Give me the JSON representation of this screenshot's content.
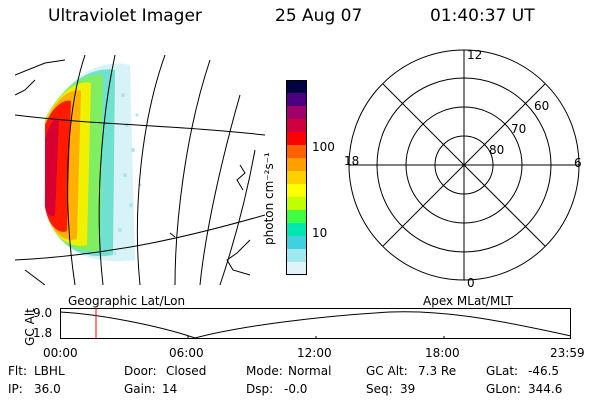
{
  "header": {
    "instrument": "Ultraviolet Imager",
    "date": "25 Aug 07",
    "time": "01:40:37 UT"
  },
  "colorbar": {
    "label": "photon cm⁻²s⁻¹",
    "ticks": [
      "100",
      "10"
    ],
    "colors": [
      "#000040",
      "#4b0082",
      "#a0006a",
      "#d00040",
      "#ff0000",
      "#ff6000",
      "#ffa000",
      "#ffd000",
      "#ffff00",
      "#c0ff00",
      "#40ff40",
      "#00e8b0",
      "#40d0e0",
      "#a0e8f0",
      "#e0f4f8"
    ]
  },
  "polar_plot": {
    "mlt_labels": {
      "top": "12",
      "bottom": "0",
      "left": "18",
      "right": "6"
    },
    "lat_labels": [
      "60",
      "70",
      "80"
    ]
  },
  "timeline": {
    "left_label": "Geographic Lat/Lon",
    "right_label": "Apex MLat/MLT",
    "y_title": "GC Alt",
    "y_ticks": [
      "9.0",
      "1.8"
    ],
    "x_ticks": [
      "00:00",
      "06:00",
      "12:00",
      "18:00",
      "23:59"
    ],
    "current_time_marker": "01:40",
    "marker_color": "#ff0000"
  },
  "status": {
    "flt_label": "Flt:",
    "flt_value": "LBHL",
    "ip_label": "IP:",
    "ip_value": "36.0",
    "door_label": "Door:",
    "door_value": "Closed",
    "gain_label": "Gain:",
    "gain_value": "14",
    "mode_label": "Mode:",
    "mode_value": "Normal",
    "dsp_label": "Dsp:",
    "dsp_value": "-0.0",
    "gcalt_label": "GC Alt:",
    "gcalt_value": "7.3 Re",
    "seq_label": "Seq:",
    "seq_value": "39",
    "glat_label": "GLat:",
    "glat_value": "-46.5",
    "glon_label": "GLon:",
    "glon_value": "344.6"
  }
}
